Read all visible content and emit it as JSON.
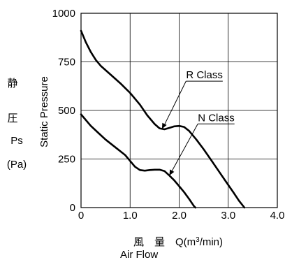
{
  "chart_data": {
    "type": "line",
    "x_ticks": [
      0,
      1.0,
      2.0,
      3.0,
      4.0
    ],
    "x_tick_labels": [
      "0",
      "1.0",
      "2.0",
      "3.0",
      "4.0"
    ],
    "y_ticks": [
      0,
      250,
      500,
      750,
      1000
    ],
    "y_tick_labels": [
      "0",
      "250",
      "500",
      "750",
      "1000"
    ],
    "xlim": [
      0,
      4.0
    ],
    "ylim": [
      0,
      1000
    ],
    "grid": true,
    "x_label_jp": "風　量　Q",
    "x_label_unit_pre": "(m",
    "x_label_unit_sup": "3",
    "x_label_unit_post": "/min)",
    "x_label_en": "Air Flow",
    "y_label_jp_1": "静",
    "y_label_jp_2": "圧",
    "y_label_symbol": "Ps",
    "y_label_unit": "(Pa)",
    "y_label_en": "Static Pressure",
    "series": [
      {
        "name": "R Class",
        "color": "#000000",
        "points": [
          [
            0,
            910
          ],
          [
            0.1,
            850
          ],
          [
            0.2,
            800
          ],
          [
            0.3,
            760
          ],
          [
            0.4,
            730
          ],
          [
            0.6,
            685
          ],
          [
            0.8,
            640
          ],
          [
            1.0,
            590
          ],
          [
            1.2,
            530
          ],
          [
            1.35,
            475
          ],
          [
            1.5,
            430
          ],
          [
            1.6,
            408
          ],
          [
            1.7,
            403
          ],
          [
            1.8,
            410
          ],
          [
            1.9,
            418
          ],
          [
            2.0,
            420
          ],
          [
            2.1,
            415
          ],
          [
            2.2,
            395
          ],
          [
            2.35,
            350
          ],
          [
            2.5,
            300
          ],
          [
            2.65,
            245
          ],
          [
            2.8,
            190
          ],
          [
            2.95,
            135
          ],
          [
            3.1,
            80
          ],
          [
            3.22,
            35
          ],
          [
            3.33,
            0
          ]
        ]
      },
      {
        "name": "N Class",
        "color": "#000000",
        "points": [
          [
            0,
            480
          ],
          [
            0.1,
            450
          ],
          [
            0.2,
            420
          ],
          [
            0.35,
            385
          ],
          [
            0.5,
            350
          ],
          [
            0.7,
            310
          ],
          [
            0.9,
            270
          ],
          [
            1.0,
            240
          ],
          [
            1.1,
            210
          ],
          [
            1.2,
            193
          ],
          [
            1.3,
            190
          ],
          [
            1.4,
            193
          ],
          [
            1.5,
            195
          ],
          [
            1.6,
            195
          ],
          [
            1.7,
            188
          ],
          [
            1.8,
            165
          ],
          [
            1.9,
            140
          ],
          [
            2.0,
            110
          ],
          [
            2.1,
            80
          ],
          [
            2.2,
            45
          ],
          [
            2.3,
            8
          ],
          [
            2.33,
            0
          ]
        ]
      }
    ],
    "annotations": [
      {
        "text": "R Class",
        "target_series": 0,
        "target_x": 1.65,
        "target_y": 405,
        "label_x": 2.14,
        "label_y": 665
      },
      {
        "text": "N Class",
        "target_series": 1,
        "target_x": 1.8,
        "target_y": 165,
        "label_x": 2.38,
        "label_y": 445
      }
    ]
  }
}
